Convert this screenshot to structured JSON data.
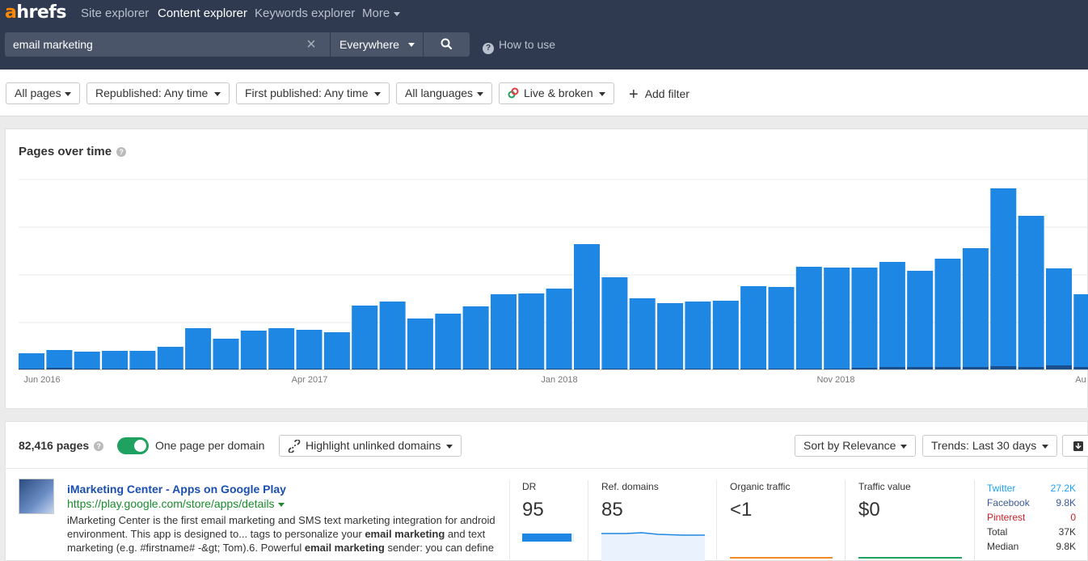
{
  "nav": {
    "logo_a": "a",
    "logo_rest": "hrefs",
    "items": [
      "Site explorer",
      "Content explorer",
      "Keywords explorer",
      "More"
    ]
  },
  "search": {
    "value": "email marketing",
    "scope": "Everywhere",
    "how_to": "How to use"
  },
  "filters": {
    "all_pages": "All pages",
    "republished": "Republished: Any time",
    "first_published": "First published: Any time",
    "languages": "All languages",
    "live_broken": "Live & broken",
    "add_filter": "Add filter"
  },
  "chart_title": "Pages over time",
  "chart_data": {
    "type": "bar",
    "title": "Pages over time",
    "x_tick_labels": [
      "Jun 2016",
      "Apr 2017",
      "Jan 2018",
      "Nov 2018",
      "Au"
    ],
    "series": [
      {
        "values": [
          20,
          24,
          22,
          23,
          23,
          28,
          51,
          38,
          48,
          51,
          49,
          46,
          79,
          84,
          63,
          69,
          78,
          93,
          94,
          100,
          155,
          114,
          88,
          82,
          84,
          85,
          103,
          102,
          127,
          126,
          126,
          133,
          122,
          137,
          150,
          224,
          190,
          125,
          93
        ]
      }
    ],
    "dark_base_values": [
      1,
      2,
      1,
      1,
      1,
      1,
      1,
      1,
      1,
      1,
      1,
      1,
      1,
      1,
      1,
      1,
      1,
      1,
      1,
      1,
      1,
      1,
      1,
      1,
      1,
      1,
      1,
      1,
      1,
      1,
      2,
      3,
      3,
      3,
      3,
      4,
      3,
      5,
      3
    ],
    "grid": true,
    "bar_color": "#1e86e3",
    "base_color": "#1a4e8c"
  },
  "results": {
    "count": "82,416 pages",
    "one_per_domain": "One page per domain",
    "highlight": "Highlight unlinked domains",
    "sort": "Sort by Relevance",
    "trends": "Trends: Last 30 days"
  },
  "result": {
    "title": "iMarketing Center - Apps on Google Play",
    "url": "https://play.google.com/store/apps/details",
    "snippet_html": "iMarketing Center is the first email marketing and SMS text marketing integration for android environment. This app is designed to... tags to personalize your <b>email marketing</b> and text marketing (e.g. #firstname# -&amp;gt; Tom).6. Powerful <b>email marketing</b> sender: you can define",
    "dr_label": "DR",
    "dr": "95",
    "dr_fill": 0.95,
    "ref_label": "Ref. domains",
    "ref": "85",
    "traffic_label": "Organic traffic",
    "traffic": "<1",
    "value_label": "Traffic value",
    "value": "$0",
    "social": [
      {
        "name": "Twitter",
        "value": "27.2K",
        "color": "#1da1f2"
      },
      {
        "name": "Facebook",
        "value": "9.8K",
        "color": "#3b5998"
      },
      {
        "name": "Pinterest",
        "value": "0",
        "color": "#cb2027"
      },
      {
        "name": "Total",
        "value": "37K",
        "color": "#333333"
      },
      {
        "name": "Median",
        "value": "9.8K",
        "color": "#333333"
      }
    ]
  }
}
